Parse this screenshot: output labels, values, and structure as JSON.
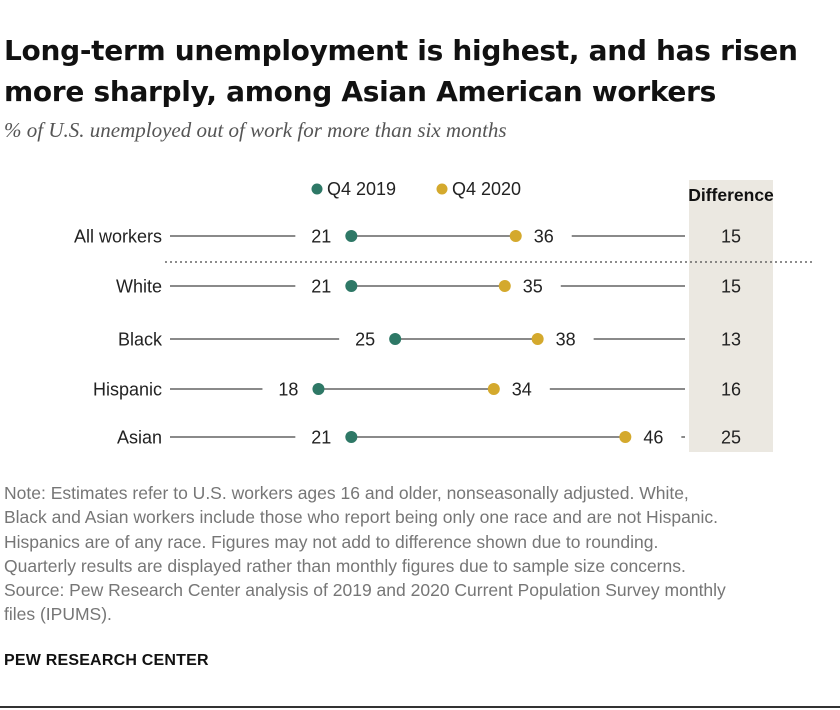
{
  "title_lines": [
    "Long-term unemployment is highest, and has risen",
    "more sharply, among Asian American workers"
  ],
  "subtitle": "% of U.S. unemployed out of work for more than six months",
  "chart_data": {
    "type": "dot",
    "categories": [
      "All workers",
      "White",
      "Black",
      "Hispanic",
      "Asian"
    ],
    "series": [
      {
        "name": "Q4 2019",
        "color": "#2e7866",
        "values": [
          21,
          21,
          25,
          18,
          21
        ]
      },
      {
        "name": "Q4 2020",
        "color": "#d4a92d",
        "values": [
          36,
          35,
          38,
          34,
          46
        ]
      }
    ],
    "difference_header": "Difference",
    "difference": [
      15,
      15,
      13,
      16,
      25
    ],
    "legend_position": "top"
  },
  "notes": [
    "Note: Estimates refer to U.S. workers ages 16 and older, nonseasonally adjusted. White,",
    "Black and Asian workers include those who report being only one race and are not Hispanic.",
    "Hispanics are of any race. Figures may not add to difference shown due to rounding.",
    "Quarterly results are displayed rather than monthly figures due to sample size concerns.",
    "Source: Pew Research Center analysis of 2019 and 2020 Current Population Survey monthly",
    "files (IPUMS)."
  ],
  "brand": "PEW RESEARCH CENTER"
}
